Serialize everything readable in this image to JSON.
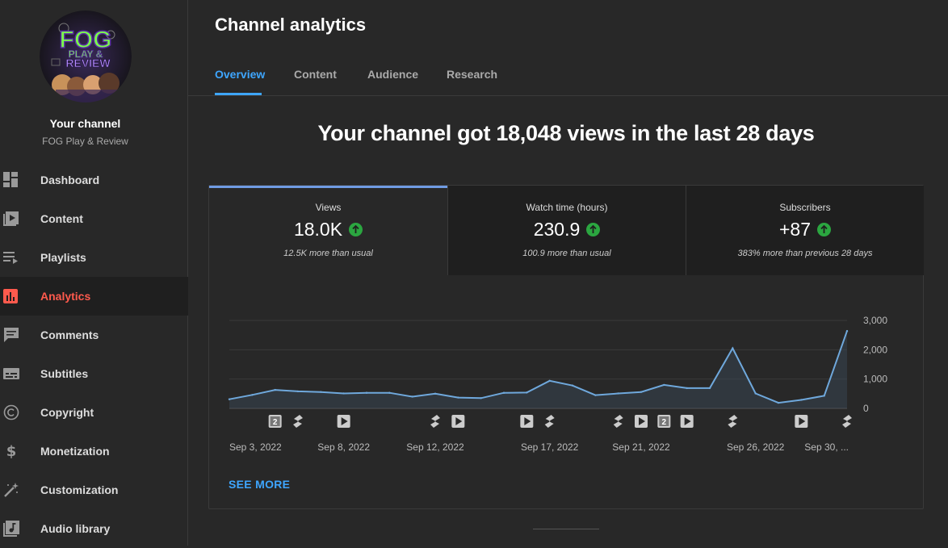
{
  "sidebar": {
    "avatar_text": [
      "FOG",
      "PLAY &",
      "REVIEW"
    ],
    "channel_title": "Your channel",
    "channel_name": "FOG Play & Review",
    "items": [
      {
        "label": "Dashboard",
        "icon": "dashboard-icon"
      },
      {
        "label": "Content",
        "icon": "content-icon"
      },
      {
        "label": "Playlists",
        "icon": "playlists-icon"
      },
      {
        "label": "Analytics",
        "icon": "analytics-icon",
        "active": true
      },
      {
        "label": "Comments",
        "icon": "comments-icon"
      },
      {
        "label": "Subtitles",
        "icon": "subtitles-icon"
      },
      {
        "label": "Copyright",
        "icon": "copyright-icon"
      },
      {
        "label": "Monetization",
        "icon": "monetization-icon"
      },
      {
        "label": "Customization",
        "icon": "customization-icon"
      },
      {
        "label": "Audio library",
        "icon": "audio-library-icon"
      }
    ]
  },
  "header": {
    "title": "Channel analytics",
    "tabs": [
      {
        "label": "Overview",
        "active": true
      },
      {
        "label": "Content"
      },
      {
        "label": "Audience"
      },
      {
        "label": "Research"
      }
    ]
  },
  "main": {
    "headline": "Your channel got 18,048 views in the last 28 days",
    "metrics": [
      {
        "label": "Views",
        "value": "18.0K",
        "note": "12.5K more than usual",
        "active": true
      },
      {
        "label": "Watch time (hours)",
        "value": "230.9",
        "note": "100.9 more than usual"
      },
      {
        "label": "Subscribers",
        "value": "+87",
        "note": "383% more than previous 28 days"
      }
    ],
    "see_more": "SEE MORE"
  },
  "colors": {
    "accent": "#3ea6ff",
    "active_nav": "#ff5a4d",
    "line": "#6fa8dc",
    "positive": "#2ba640"
  },
  "chart_data": {
    "type": "area",
    "y_ticks": [
      "3,000",
      "2,000",
      "1,000",
      "0"
    ],
    "ylim": [
      0,
      3000
    ],
    "x_labels": [
      "Sep 3, 2022",
      "Sep 8, 2022",
      "Sep 12, 2022",
      "Sep 17, 2022",
      "Sep 21, 2022",
      "Sep 26, 2022",
      "Sep 30, ..."
    ],
    "x_label_index": [
      0,
      5,
      9,
      14,
      18,
      23,
      27
    ],
    "values": [
      310,
      460,
      630,
      580,
      560,
      510,
      530,
      530,
      400,
      500,
      370,
      350,
      530,
      540,
      940,
      780,
      450,
      510,
      560,
      800,
      690,
      690,
      2050,
      510,
      190,
      290,
      430,
      2640
    ],
    "markers": [
      {
        "i": 2,
        "kind": "count",
        "text": "2"
      },
      {
        "i": 3,
        "kind": "short"
      },
      {
        "i": 5,
        "kind": "video"
      },
      {
        "i": 9,
        "kind": "short"
      },
      {
        "i": 10,
        "kind": "video"
      },
      {
        "i": 13,
        "kind": "video"
      },
      {
        "i": 14,
        "kind": "short"
      },
      {
        "i": 17,
        "kind": "short"
      },
      {
        "i": 18,
        "kind": "video"
      },
      {
        "i": 19,
        "kind": "count",
        "text": "2"
      },
      {
        "i": 20,
        "kind": "video"
      },
      {
        "i": 22,
        "kind": "short"
      },
      {
        "i": 25,
        "kind": "video"
      },
      {
        "i": 27,
        "kind": "short"
      }
    ]
  }
}
